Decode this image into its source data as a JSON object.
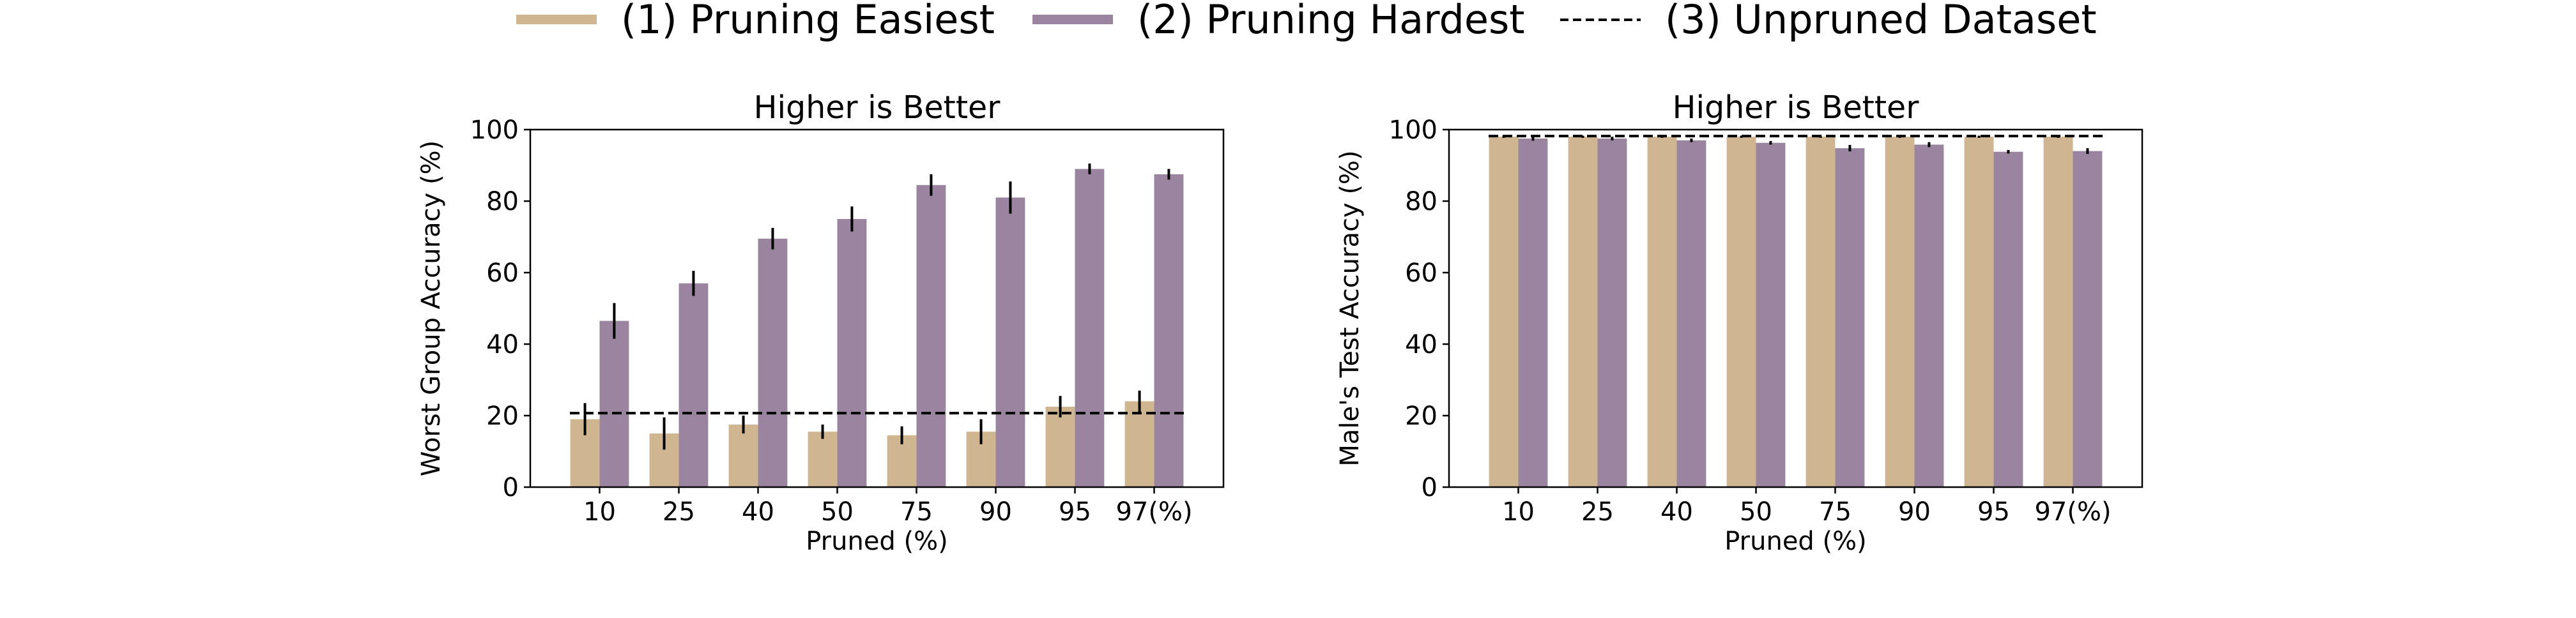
{
  "colors": {
    "easiest": "#d0b690",
    "hardest": "#9a84a0",
    "baseline": "#000000"
  },
  "legend": {
    "easiest": "(1) Pruning Easiest",
    "hardest": "(2) Pruning Hardest",
    "unpruned": "(3) Unpruned Dataset"
  },
  "chart_data": [
    {
      "type": "bar",
      "title": "Higher is Better",
      "xlabel": "Pruned (%)",
      "ylabel": "Worst Group Accuracy (%)",
      "categories": [
        "10",
        "25",
        "40",
        "50",
        "75",
        "90",
        "95",
        "97(%)"
      ],
      "ylim": [
        0,
        100
      ],
      "yticks": [
        "0",
        "20",
        "40",
        "60",
        "80",
        "100"
      ],
      "grid": false,
      "series": [
        {
          "name": "(1) Pruning Easiest",
          "values": [
            19,
            15,
            17.5,
            15.5,
            14.5,
            15.5,
            22.5,
            24
          ],
          "errors": [
            4.5,
            4.5,
            2.5,
            2,
            2.5,
            3.5,
            3,
            3
          ]
        },
        {
          "name": "(2) Pruning Hardest",
          "values": [
            46.5,
            57,
            69.5,
            75,
            84.5,
            81,
            89,
            87.5
          ],
          "errors": [
            5,
            3.5,
            3,
            3.5,
            3,
            4.5,
            1.5,
            1.5
          ]
        }
      ],
      "baseline": {
        "name": "(3) Unpruned Dataset",
        "value": 20.7
      }
    },
    {
      "type": "bar",
      "title": "Higher is Better",
      "xlabel": "Pruned (%)",
      "ylabel": "Male's Test Accuracy (%)",
      "categories": [
        "10",
        "25",
        "40",
        "50",
        "75",
        "90",
        "95",
        "97(%)"
      ],
      "ylim": [
        0,
        100
      ],
      "yticks": [
        "0",
        "20",
        "40",
        "60",
        "80",
        "100"
      ],
      "grid": false,
      "series": [
        {
          "name": "(1) Pruning Easiest",
          "values": [
            98,
            98,
            98,
            98,
            98,
            98,
            98,
            98
          ],
          "errors": [
            0.3,
            0.3,
            0.3,
            0.3,
            0.3,
            0.3,
            0.3,
            0.3
          ]
        },
        {
          "name": "(2) Pruning Hardest",
          "values": [
            97.5,
            97.5,
            97,
            96.3,
            94.8,
            95.8,
            93.8,
            94
          ],
          "errors": [
            0.6,
            0.5,
            0.5,
            0.5,
            0.9,
            0.7,
            0.5,
            0.8
          ]
        }
      ],
      "baseline": {
        "name": "(3) Unpruned Dataset",
        "value": 98.2
      }
    }
  ]
}
